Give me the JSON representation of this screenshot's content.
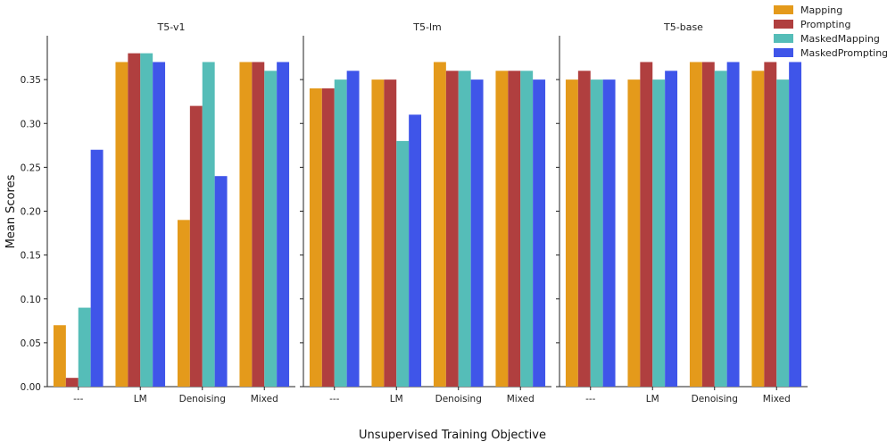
{
  "chart_data": {
    "type": "bar",
    "xlabel": "Unsupervised Training Objective",
    "ylabel": "Mean Scores",
    "ylim": [
      0,
      0.4
    ],
    "yticks": [
      "0.00",
      "0.05",
      "0.10",
      "0.15",
      "0.20",
      "0.25",
      "0.30",
      "0.35"
    ],
    "legend_position": "top-right",
    "categories": [
      "---",
      "LM",
      "Denoising",
      "Mixed"
    ],
    "series_meta": [
      {
        "name": "Mapping",
        "color": "#e49a1b"
      },
      {
        "name": "Prompting",
        "color": "#b03f3f"
      },
      {
        "name": "MaskedMapping",
        "color": "#55bdb8"
      },
      {
        "name": "MaskedPrompting",
        "color": "#3f55e9"
      }
    ],
    "panels": [
      {
        "title": "T5-v1",
        "series": [
          {
            "name": "Mapping",
            "values": [
              0.07,
              0.37,
              0.19,
              0.37
            ]
          },
          {
            "name": "Prompting",
            "values": [
              0.01,
              0.38,
              0.32,
              0.37
            ]
          },
          {
            "name": "MaskedMapping",
            "values": [
              0.09,
              0.38,
              0.37,
              0.36
            ]
          },
          {
            "name": "MaskedPrompting",
            "values": [
              0.27,
              0.37,
              0.24,
              0.37
            ]
          }
        ]
      },
      {
        "title": "T5-lm",
        "series": [
          {
            "name": "Mapping",
            "values": [
              0.34,
              0.35,
              0.37,
              0.36
            ]
          },
          {
            "name": "Prompting",
            "values": [
              0.34,
              0.35,
              0.36,
              0.36
            ]
          },
          {
            "name": "MaskedMapping",
            "values": [
              0.35,
              0.28,
              0.36,
              0.36
            ]
          },
          {
            "name": "MaskedPrompting",
            "values": [
              0.36,
              0.31,
              0.35,
              0.35
            ]
          }
        ]
      },
      {
        "title": "T5-base",
        "series": [
          {
            "name": "Mapping",
            "values": [
              0.35,
              0.35,
              0.37,
              0.36
            ]
          },
          {
            "name": "Prompting",
            "values": [
              0.36,
              0.37,
              0.37,
              0.37
            ]
          },
          {
            "name": "MaskedMapping",
            "values": [
              0.35,
              0.35,
              0.36,
              0.35
            ]
          },
          {
            "name": "MaskedPrompting",
            "values": [
              0.35,
              0.36,
              0.37,
              0.37
            ]
          }
        ]
      }
    ]
  }
}
